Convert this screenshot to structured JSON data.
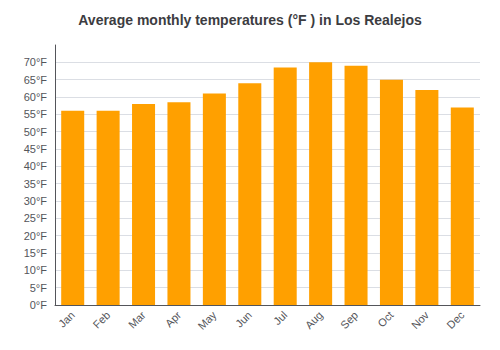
{
  "chart_data": {
    "type": "bar",
    "title": "Average monthly temperatures (°F ) in Los Realejos",
    "categories": [
      "Jan",
      "Feb",
      "Mar",
      "Apr",
      "May",
      "Jun",
      "Jul",
      "Aug",
      "Sep",
      "Oct",
      "Nov",
      "Dec"
    ],
    "values": [
      56.0,
      56.0,
      58.0,
      58.5,
      61.0,
      64.0,
      68.5,
      70.0,
      69.0,
      65.0,
      62.0,
      57.0
    ],
    "color": "#FFA000",
    "ylim": [
      0,
      75
    ],
    "yticks": [
      {
        "value": 0,
        "label": "0°F"
      },
      {
        "value": 5,
        "label": "5°F"
      },
      {
        "value": 10,
        "label": "10°F"
      },
      {
        "value": 15,
        "label": "15°F"
      },
      {
        "value": 20,
        "label": "20°F"
      },
      {
        "value": 25,
        "label": "25°F"
      },
      {
        "value": 30,
        "label": "30°F"
      },
      {
        "value": 35,
        "label": "35°F"
      },
      {
        "value": 40,
        "label": "40°F"
      },
      {
        "value": 45,
        "label": "45°F"
      },
      {
        "value": 50,
        "label": "50°F"
      },
      {
        "value": 55,
        "label": "55°F"
      },
      {
        "value": 60,
        "label": "60°F"
      },
      {
        "value": 65,
        "label": "65°F"
      },
      {
        "value": 70,
        "label": "70°F"
      }
    ],
    "grid": true
  }
}
